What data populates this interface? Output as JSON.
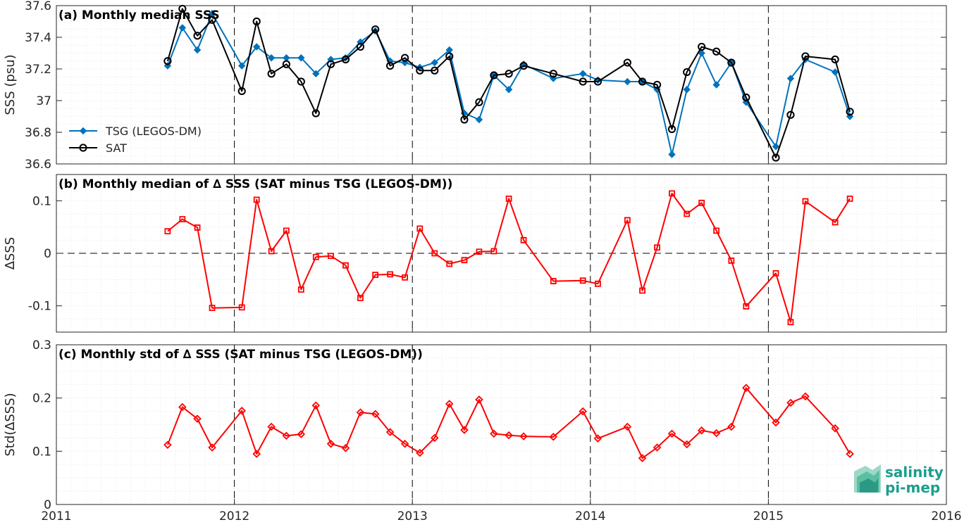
{
  "chart_data": [
    {
      "type": "line",
      "title": "(a) Monthly median SSS",
      "ylabel": "SSS (psu)",
      "xlabel": "",
      "xlim": [
        2011,
        2016
      ],
      "ylim": [
        36.6,
        37.6
      ],
      "yticks": [
        36.6,
        36.8,
        37,
        37.2,
        37.4,
        37.6
      ],
      "ytick_labels": [
        "36.6",
        "36.8",
        "37",
        "37.2",
        "37.4",
        "37.6"
      ],
      "grid": true,
      "legend_position": "lower-left",
      "series": [
        {
          "name": "TSG (LEGOS-DM)",
          "color": "#0072bd",
          "marker": "diamond",
          "x": [
            2011.625,
            2011.708,
            2011.792,
            2011.875,
            2012.042,
            2012.125,
            2012.208,
            2012.292,
            2012.375,
            2012.458,
            2012.542,
            2012.625,
            2012.708,
            2012.792,
            2012.875,
            2012.958,
            2013.042,
            2013.125,
            2013.208,
            2013.292,
            2013.375,
            2013.458,
            2013.542,
            2013.625,
            2013.792,
            2013.958,
            2014.042,
            2014.208,
            2014.292,
            2014.375,
            2014.458,
            2014.542,
            2014.625,
            2014.708,
            2014.792,
            2014.875,
            2015.042,
            2015.125,
            2015.208,
            2015.375,
            2015.458
          ],
          "values": [
            37.22,
            37.46,
            37.32,
            37.55,
            37.22,
            37.34,
            37.27,
            37.27,
            37.27,
            37.17,
            37.26,
            37.27,
            37.37,
            37.44,
            37.25,
            37.24,
            37.21,
            37.24,
            37.32,
            36.92,
            36.88,
            37.16,
            37.07,
            37.23,
            37.14,
            37.17,
            37.13,
            37.12,
            37.12,
            37.07,
            36.66,
            37.07,
            37.3,
            37.1,
            37.24,
            36.99,
            36.71,
            37.14,
            37.26,
            37.18,
            36.9
          ]
        },
        {
          "name": "SAT",
          "color": "#000000",
          "marker": "circle",
          "x": [
            2011.625,
            2011.708,
            2011.792,
            2011.875,
            2012.042,
            2012.125,
            2012.208,
            2012.292,
            2012.375,
            2012.458,
            2012.542,
            2012.625,
            2012.708,
            2012.792,
            2012.875,
            2012.958,
            2013.042,
            2013.125,
            2013.208,
            2013.292,
            2013.375,
            2013.458,
            2013.542,
            2013.625,
            2013.792,
            2013.958,
            2014.042,
            2014.208,
            2014.292,
            2014.375,
            2014.458,
            2014.542,
            2014.625,
            2014.708,
            2014.792,
            2014.875,
            2015.042,
            2015.125,
            2015.208,
            2015.375,
            2015.458
          ],
          "values": [
            37.25,
            37.58,
            37.41,
            37.51,
            37.06,
            37.5,
            37.17,
            37.23,
            37.12,
            36.92,
            37.23,
            37.26,
            37.34,
            37.45,
            37.22,
            37.27,
            37.19,
            37.19,
            37.28,
            36.88,
            36.99,
            37.16,
            37.17,
            37.22,
            37.17,
            37.12,
            37.12,
            37.24,
            37.12,
            37.1,
            36.82,
            37.18,
            37.34,
            37.31,
            37.24,
            37.02,
            36.64,
            36.91,
            37.28,
            37.26,
            36.93
          ]
        }
      ]
    },
    {
      "type": "line",
      "title": "(b) Monthly median of ∆ SSS (SAT minus TSG (LEGOS-DM))",
      "ylabel": "∆SSS",
      "xlabel": "",
      "xlim": [
        2011,
        2016
      ],
      "ylim": [
        -0.15,
        0.15
      ],
      "yticks": [
        -0.1,
        0,
        0.1
      ],
      "ytick_labels": [
        "-0.1",
        "0",
        "0.1"
      ],
      "grid": true,
      "reference_line": 0,
      "series": [
        {
          "color": "#ff0000",
          "marker": "square",
          "x": [
            2011.625,
            2011.708,
            2011.792,
            2011.875,
            2012.042,
            2012.125,
            2012.208,
            2012.292,
            2012.375,
            2012.458,
            2012.542,
            2012.625,
            2012.708,
            2012.792,
            2012.875,
            2012.958,
            2013.042,
            2013.125,
            2013.208,
            2013.292,
            2013.375,
            2013.458,
            2013.542,
            2013.625,
            2013.792,
            2013.958,
            2014.042,
            2014.208,
            2014.292,
            2014.375,
            2014.458,
            2014.542,
            2014.625,
            2014.708,
            2014.792,
            2014.875,
            2015.042,
            2015.125,
            2015.208,
            2015.375,
            2015.458
          ],
          "values": [
            0.042,
            0.065,
            0.049,
            -0.104,
            -0.103,
            0.102,
            0.004,
            0.043,
            -0.069,
            -0.007,
            -0.005,
            -0.023,
            -0.085,
            -0.041,
            -0.04,
            -0.046,
            0.047,
            0.0,
            -0.02,
            -0.013,
            0.003,
            0.004,
            0.104,
            0.025,
            -0.053,
            -0.052,
            -0.058,
            0.063,
            -0.071,
            0.011,
            0.114,
            0.075,
            0.096,
            0.043,
            -0.014,
            -0.101,
            -0.038,
            -0.131,
            0.099,
            0.059,
            0.104
          ]
        }
      ]
    },
    {
      "type": "line",
      "title": "(c) Monthly std of ∆ SSS (SAT minus TSG (LEGOS-DM))",
      "ylabel": "Std(∆SSS)",
      "xlabel": "",
      "xlim": [
        2011,
        2016
      ],
      "ylim": [
        0,
        0.3
      ],
      "yticks": [
        0,
        0.1,
        0.2,
        0.3
      ],
      "ytick_labels": [
        "0",
        "0.1",
        "0.2",
        "0.3"
      ],
      "xticks": [
        2011,
        2012,
        2013,
        2014,
        2015,
        2016
      ],
      "xtick_labels": [
        "2011",
        "2012",
        "2013",
        "2014",
        "2015",
        "2016"
      ],
      "grid": true,
      "series": [
        {
          "color": "#ff0000",
          "marker": "diamond",
          "x": [
            2011.625,
            2011.708,
            2011.792,
            2011.875,
            2012.042,
            2012.125,
            2012.208,
            2012.292,
            2012.375,
            2012.458,
            2012.542,
            2012.625,
            2012.708,
            2012.792,
            2012.875,
            2012.958,
            2013.042,
            2013.125,
            2013.208,
            2013.292,
            2013.375,
            2013.458,
            2013.542,
            2013.625,
            2013.792,
            2013.958,
            2014.042,
            2014.208,
            2014.292,
            2014.375,
            2014.458,
            2014.542,
            2014.625,
            2014.708,
            2014.792,
            2014.875,
            2015.042,
            2015.125,
            2015.208,
            2015.375,
            2015.458
          ],
          "values": [
            0.112,
            0.183,
            0.161,
            0.107,
            0.176,
            0.095,
            0.146,
            0.129,
            0.132,
            0.186,
            0.114,
            0.106,
            0.173,
            0.17,
            0.136,
            0.114,
            0.097,
            0.125,
            0.189,
            0.14,
            0.197,
            0.133,
            0.13,
            0.128,
            0.127,
            0.175,
            0.124,
            0.146,
            0.087,
            0.107,
            0.133,
            0.113,
            0.139,
            0.134,
            0.146,
            0.219,
            0.154,
            0.191,
            0.203,
            0.143,
            0.095
          ]
        }
      ]
    }
  ],
  "logo": {
    "line1": "salinity",
    "line2": "pi-mep"
  }
}
